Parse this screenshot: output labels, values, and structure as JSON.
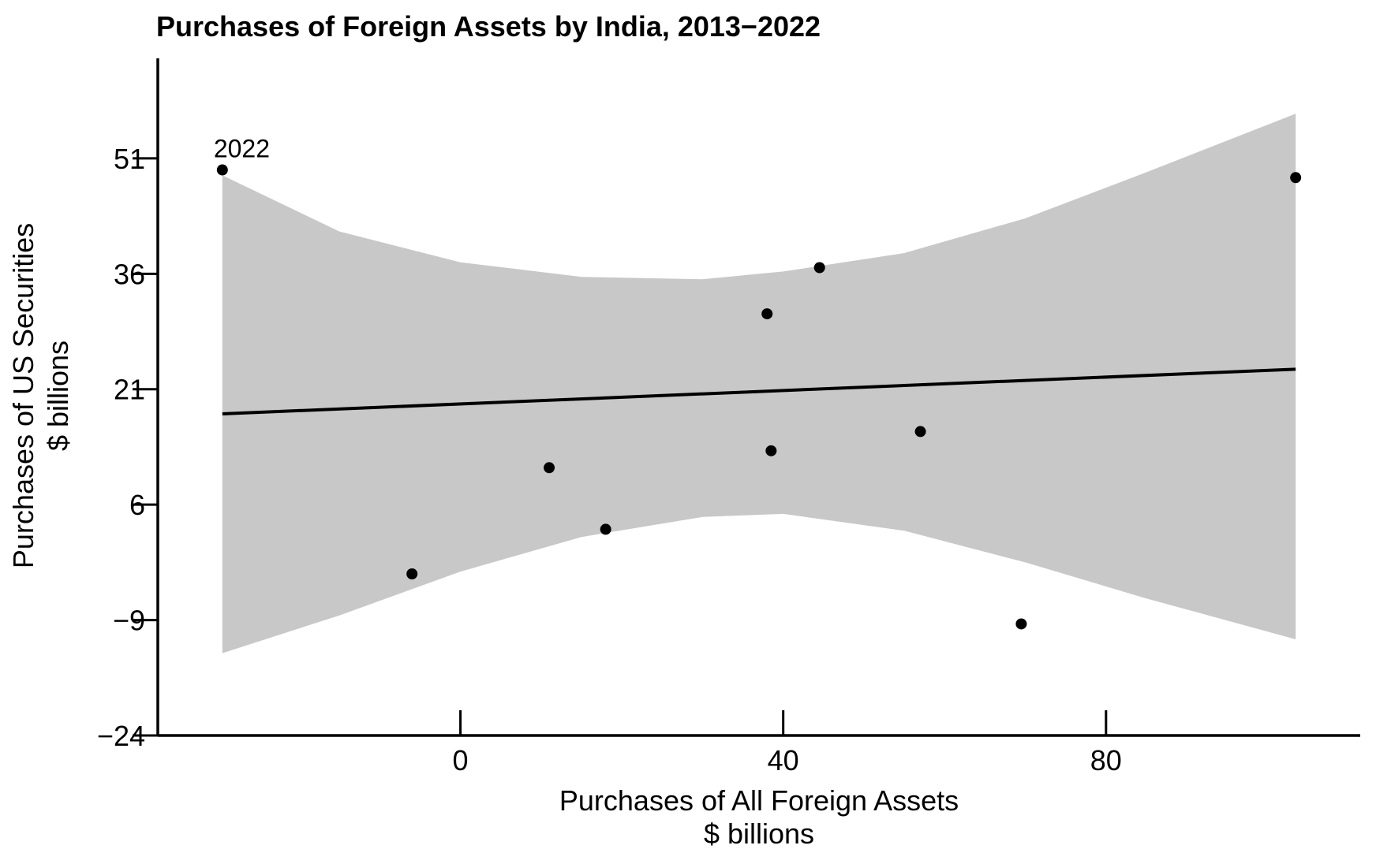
{
  "chart_data": {
    "type": "scatter",
    "title": "Purchases of Foreign Assets by India, 2013−2022",
    "xlabel": "Purchases of All Foreign Assets",
    "xlabel_unit": "$ billions",
    "ylabel": "Purchases of US Securities",
    "ylabel_unit": "$ billions",
    "xlim": [
      -37.5,
      111.5
    ],
    "ylim": [
      -24,
      64
    ],
    "x_ticks": [
      0,
      40,
      80
    ],
    "x_tick_labels": [
      "0",
      "40",
      "80"
    ],
    "y_ticks": [
      -24,
      -9,
      6,
      21,
      36,
      51
    ],
    "y_tick_labels": [
      "−24",
      "−9",
      "6",
      "21",
      "36",
      "51"
    ],
    "grid": false,
    "legend": "none",
    "series": [
      {
        "points": [
          {
            "x": -29.5,
            "y": 49.5,
            "label": "2022"
          },
          {
            "x": -6,
            "y": -3
          },
          {
            "x": 11,
            "y": 10.8
          },
          {
            "x": 18,
            "y": 2.8
          },
          {
            "x": 38,
            "y": 30.8
          },
          {
            "x": 38.5,
            "y": 13
          },
          {
            "x": 44.5,
            "y": 36.8
          },
          {
            "x": 57,
            "y": 15.5
          },
          {
            "x": 69.5,
            "y": -9.5
          },
          {
            "x": 103.5,
            "y": 48.5
          }
        ]
      }
    ],
    "fit_line": {
      "x": [
        -29.5,
        103.5
      ],
      "y": [
        17.8,
        23.6
      ]
    },
    "confidence_band": {
      "x": [
        -29.5,
        -15,
        0,
        15,
        30,
        40,
        55,
        70,
        85,
        103.5
      ],
      "upper": [
        48.8,
        41.5,
        37.5,
        35.6,
        35.3,
        36.3,
        38.7,
        43.2,
        49.2,
        56.8
      ],
      "lower": [
        -13.3,
        -8.4,
        -2.7,
        1.8,
        4.4,
        4.8,
        2.6,
        -1.5,
        -6.2,
        -11.5
      ]
    },
    "colors": {
      "points": "#000000",
      "fit_line": "#000000",
      "band": "#c8c8c8",
      "axes": "#000000"
    }
  }
}
